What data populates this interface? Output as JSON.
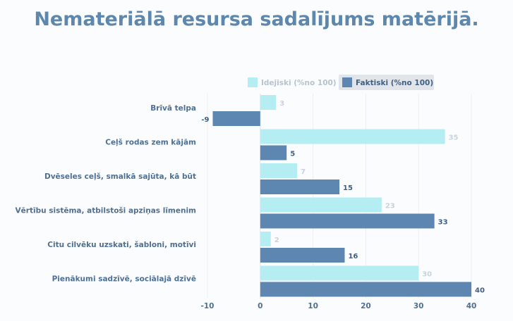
{
  "chart_data": {
    "type": "bar",
    "orientation": "horizontal",
    "title": "Nemateriālā resursa sadalījums matērijā.",
    "categories": [
      "Brīvā telpa",
      "Ceļš rodas zem kājām",
      "Dvēseles ceļš, smalkā sajūta, kā būt",
      "Vērtību sistēma, atbilstoši apziņas līmenim",
      "Citu cilvēku uzskati, šabloni, motīvi",
      "Pienākumi sadzīvē, sociālajā dzīvē"
    ],
    "series": [
      {
        "name": "Idejiski (%no 100)",
        "values": [
          3,
          35,
          7,
          23,
          2,
          30
        ],
        "color": "#b4eef2"
      },
      {
        "name": "Faktiski (%no 100)",
        "values": [
          -9,
          5,
          15,
          33,
          16,
          40
        ],
        "color": "#5d87b0"
      }
    ],
    "xlim": [
      -10,
      40
    ],
    "xticks": [
      "-10",
      "0",
      "10",
      "20",
      "30",
      "40"
    ],
    "grid": true,
    "legend_position": "top-right"
  }
}
